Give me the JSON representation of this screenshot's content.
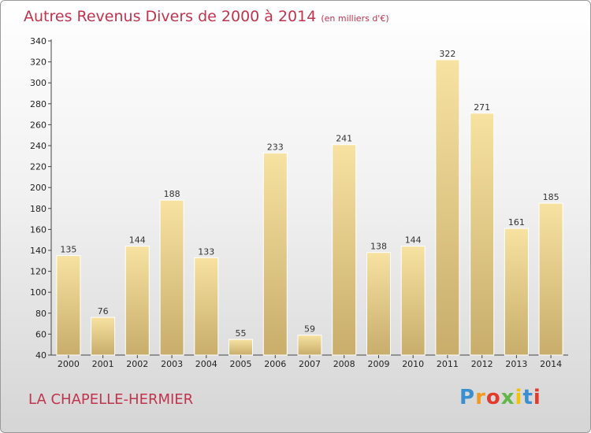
{
  "header": {
    "title": "Autres Revenus Divers de 2000 à 2014",
    "unit": "(en milliers d'€)"
  },
  "footer": {
    "commune": "LA CHAPELLE-HERMIER",
    "logo": "Proxiti",
    "logo_colors": [
      "#3a8fd1",
      "#f29a1f",
      "#e23b2e",
      "#63b64a",
      "#f1c30e",
      "#3a8fd1",
      "#e23b2e"
    ]
  },
  "colors": {
    "title": "#c0344d",
    "bar_light": "#f7e2a2",
    "bar_dark": "#c8ad6b"
  },
  "chart_data": {
    "type": "bar",
    "title": "Autres Revenus Divers de 2000 à 2014",
    "subtitle": "(en milliers d'€)",
    "xlabel": "",
    "ylabel": "",
    "categories": [
      "2000",
      "2001",
      "2002",
      "2003",
      "2004",
      "2005",
      "2006",
      "2007",
      "2008",
      "2009",
      "2010",
      "2011",
      "2012",
      "2013",
      "2014"
    ],
    "values": [
      135,
      76,
      144,
      188,
      133,
      55,
      233,
      59,
      241,
      138,
      144,
      322,
      271,
      161,
      185
    ],
    "ylim": [
      40,
      340
    ],
    "yticks": [
      40,
      60,
      80,
      100,
      120,
      140,
      160,
      180,
      200,
      220,
      240,
      260,
      280,
      300,
      320,
      340
    ],
    "grid": false,
    "legend": "none"
  }
}
